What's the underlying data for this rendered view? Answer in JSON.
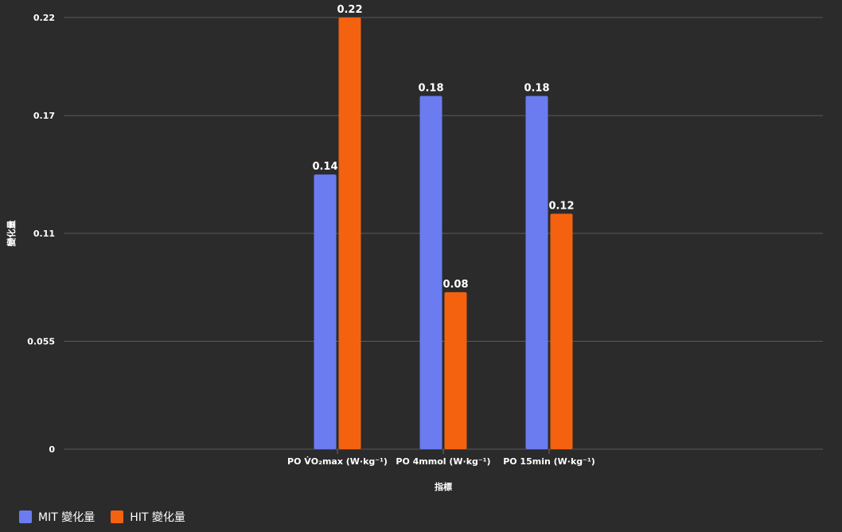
{
  "chart_data": {
    "type": "bar",
    "categories": [
      "PO V̇O₂max (W·kg⁻¹)",
      "PO 4mmol (W·kg⁻¹)",
      "PO 15min (W·kg⁻¹)"
    ],
    "series": [
      {
        "name": "MIT 變化量",
        "values": [
          0.14,
          0.18,
          0.18
        ],
        "color": "#6a7cf0"
      },
      {
        "name": "HIT 變化量",
        "values": [
          0.22,
          0.08,
          0.12
        ],
        "color": "#f5620f"
      }
    ],
    "data_labels": [
      [
        "0.14",
        "0.18",
        "0.18"
      ],
      [
        "0.22",
        "0.08",
        "0.12"
      ]
    ],
    "xlabel": "指標",
    "ylabel": "變化量",
    "ylim": [
      0,
      0.22
    ],
    "yticks": [
      0,
      0.055,
      0.11,
      0.17,
      0.22
    ],
    "ytick_labels": [
      "0",
      "0.055",
      "0.11",
      "0.17",
      "0.22"
    ],
    "grid": true,
    "legend_position": "bottom-left"
  }
}
